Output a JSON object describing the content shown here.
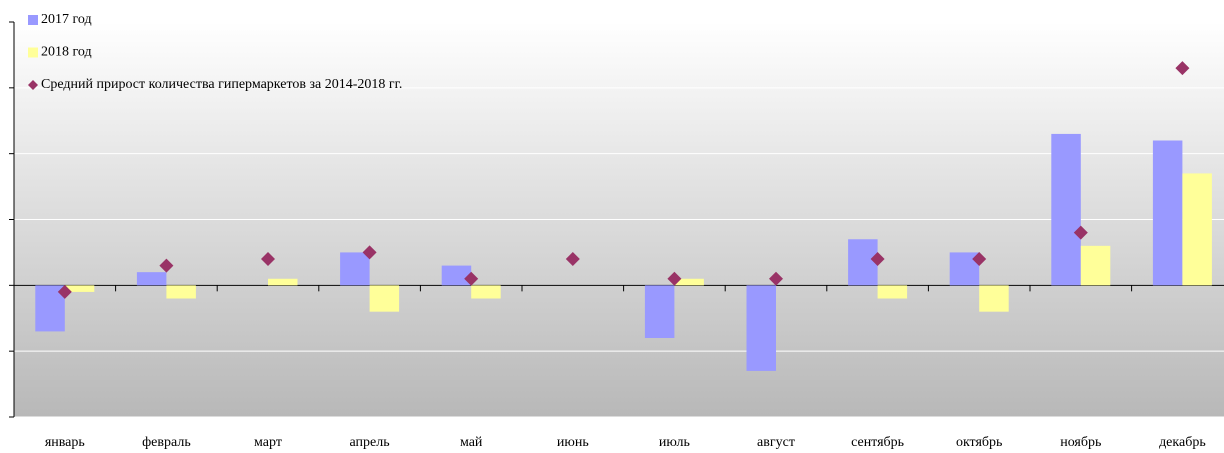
{
  "chart_data": {
    "type": "bar",
    "categories": [
      "январь",
      "февраль",
      "март",
      "апрель",
      "май",
      "июнь",
      "июль",
      "август",
      "сентябрь",
      "октябрь",
      "ноябрь",
      "декабрь"
    ],
    "series": [
      {
        "name": "2017 год",
        "color": "#9999ff",
        "values": [
          -7,
          2,
          0,
          5,
          3,
          0,
          -8,
          -13,
          7,
          5,
          23,
          22
        ]
      },
      {
        "name": "2018 год",
        "color": "#ffff99",
        "values": [
          -1,
          -2,
          1,
          -4,
          -2,
          0,
          1,
          0,
          -2,
          -4,
          6,
          17
        ]
      },
      {
        "name": "Средний прирост количества гипермаркетов за 2014-2018 гг.",
        "type": "scatter",
        "color": "#993366",
        "values": [
          -1,
          3,
          4,
          5,
          1,
          4,
          1,
          1,
          4,
          4,
          8,
          33
        ]
      }
    ],
    "ylim": [
      -20,
      40
    ],
    "yticks": [
      -20,
      -10,
      0,
      10,
      20,
      30,
      40
    ],
    "grid": true,
    "legend": "top-left"
  }
}
